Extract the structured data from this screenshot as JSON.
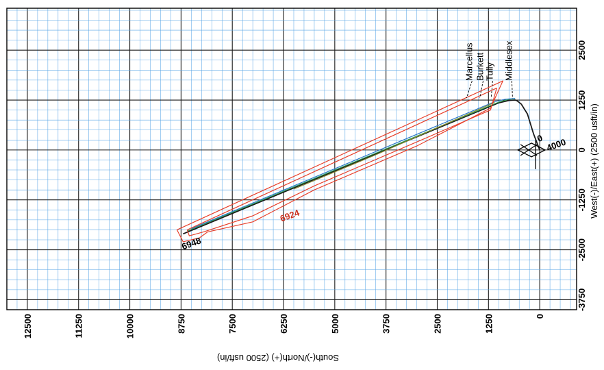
{
  "chart_data": {
    "type": "line",
    "x_axis": {
      "label": "South(-)/North(+) (2500 usft/in)",
      "ticks": [
        12500,
        11250,
        10000,
        8750,
        7500,
        6250,
        5000,
        3750,
        2500,
        1250,
        0
      ],
      "range": [
        -900,
        13000
      ],
      "direction": "decreasing-left-to-right"
    },
    "y_axis": {
      "label": "West(-)/East(+) (2500 usft/in)",
      "ticks": [
        2500,
        1250,
        0,
        -1250,
        -2500,
        -3750
      ],
      "range": [
        -4000,
        3550
      ]
    },
    "grid": true,
    "minor_grid_spacing": 250,
    "formation_labels": [
      {
        "label": "Marcellus",
        "x": 1650,
        "y": 1800
      },
      {
        "label": "Burkett",
        "x": 1380,
        "y": 1800
      },
      {
        "label": "Tully",
        "x": 1150,
        "y": 1800
      },
      {
        "label": "Middlesex",
        "x": 680,
        "y": 1800
      }
    ],
    "annotations": [
      {
        "text": "4000",
        "x": -200,
        "y": -30,
        "color": "#000000"
      },
      {
        "text": "6948",
        "x": 8700,
        "y": -2500,
        "color": "#000000"
      },
      {
        "text": "6924",
        "x": 6300,
        "y": -1800,
        "color": "#cc3322"
      },
      {
        "text": "0",
        "x": 30,
        "y": 200,
        "color": "#000000"
      }
    ],
    "series": [
      {
        "role": "wellpath-main",
        "color": "#1a1a1a",
        "x": [
          0,
          150,
          300,
          450,
          550,
          600,
          750,
          1000,
          8700
        ],
        "y": [
          0,
          400,
          900,
          1150,
          1230,
          1250,
          1240,
          1180,
          -2100
        ]
      },
      {
        "role": "wellpath-offset-green",
        "color": "#2e9e55",
        "x": [
          600,
          750,
          1000,
          4000,
          8600
        ],
        "y": [
          1280,
          1270,
          1200,
          -80,
          -2030
        ]
      },
      {
        "role": "wellpath-offset-blue",
        "color": "#2a78c8",
        "x": [
          600,
          850,
          1100,
          5000,
          8500
        ],
        "y": [
          1290,
          1270,
          1210,
          -470,
          -1970
        ]
      },
      {
        "role": "wellpath-offset-olive",
        "color": "#8a8a2e",
        "x": [
          1100,
          4000,
          6000
        ],
        "y": [
          1190,
          -120,
          -980
        ]
      },
      {
        "role": "lease-line-outer",
        "color": "#e8412c",
        "closed": true,
        "x": [
          900,
          8850,
          8700,
          8300,
          8100,
          7000,
          5500,
          3000,
          1200,
          900
        ],
        "y": [
          1730,
          -2000,
          -2300,
          -2200,
          -2050,
          -1800,
          -1000,
          100,
          1050,
          1730
        ]
      },
      {
        "role": "lease-line-inner",
        "color": "#e8412c",
        "closed": true,
        "x": [
          1050,
          8600,
          8550,
          8200,
          7000,
          5500,
          3000,
          1200,
          1050
        ],
        "y": [
          1550,
          -2000,
          -2150,
          -2050,
          -1650,
          -900,
          200,
          1000,
          1550
        ]
      }
    ]
  }
}
